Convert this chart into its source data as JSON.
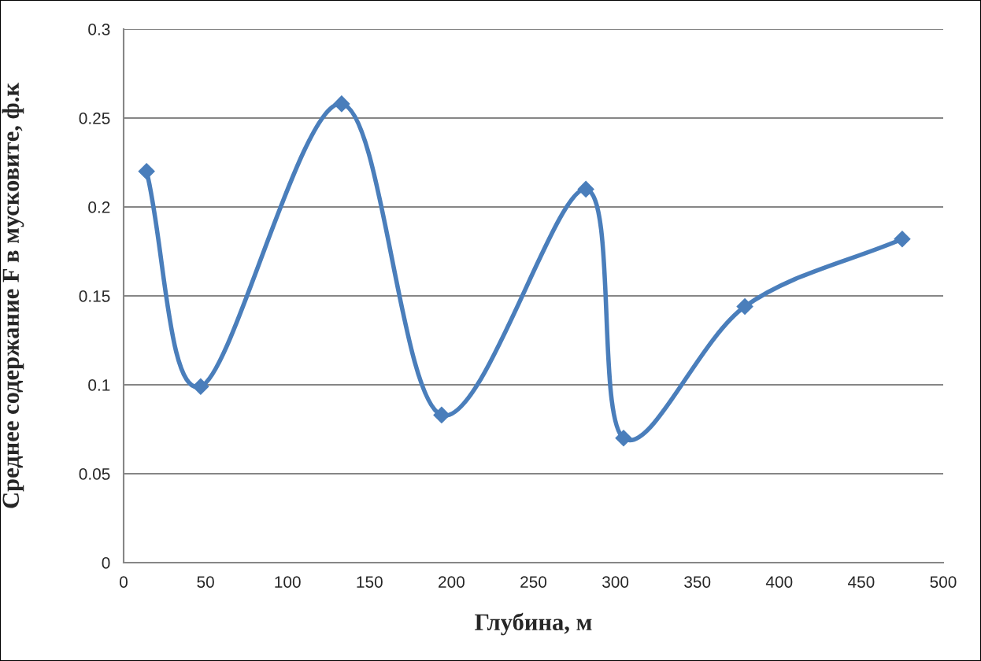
{
  "chart_data": {
    "type": "line",
    "xlabel": "Глубина, м",
    "ylabel": "Среднее содержание F в мусковите, ф.к",
    "x": [
      14,
      47,
      133,
      194,
      282,
      305,
      379,
      475
    ],
    "series": [
      {
        "color": "#4a7ebb",
        "values": [
          0.22,
          0.099,
          0.258,
          0.083,
          0.21,
          0.07,
          0.144,
          0.182
        ]
      }
    ],
    "xlim": [
      0,
      500
    ],
    "xticks": [
      0,
      50,
      100,
      150,
      200,
      250,
      300,
      350,
      400,
      450,
      500
    ],
    "ylim": [
      0,
      0.3
    ],
    "yticks": [
      {
        "value": 0,
        "label": "0"
      },
      0.05,
      0.1,
      0.15,
      0.2,
      0.25,
      0.3
    ],
    "grid": "y",
    "marker": "diamond",
    "line_style": "solid"
  }
}
